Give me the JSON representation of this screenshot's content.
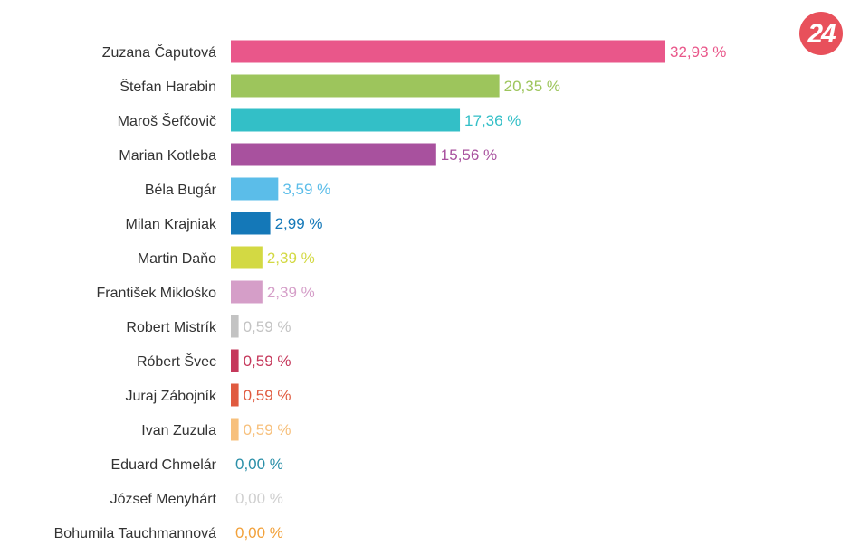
{
  "logo": {
    "text": "24",
    "color": "#e8505b"
  },
  "chart_data": {
    "type": "bar",
    "orientation": "horizontal",
    "categories": [
      "Zuzana Čaputová",
      "Štefan Harabin",
      "Maroš Šefčovič",
      "Marian Kotleba",
      "Béla Bugár",
      "Milan Krajniak",
      "Martin Daňo",
      "František Miklośko",
      "Robert Mistrík",
      "Róbert Švec",
      "Juraj Zábojník",
      "Ivan Zuzula",
      "Eduard Chmelár",
      "József Menyhárt",
      "Bohumila Tauchmannová"
    ],
    "values": [
      32.93,
      20.35,
      17.36,
      15.56,
      3.59,
      2.99,
      2.39,
      2.39,
      0.59,
      0.59,
      0.59,
      0.59,
      0.0,
      0.0,
      0.0
    ],
    "value_labels": [
      "32,93 %",
      "20,35 %",
      "17,36 %",
      "15,56 %",
      "3,59 %",
      "2,99 %",
      "2,39 %",
      "2,39 %",
      "0,59 %",
      "0,59 %",
      "0,59 %",
      "0,59 %",
      "0,00 %",
      "0,00 %",
      "0,00 %"
    ],
    "colors": [
      "#e9578a",
      "#9dc55c",
      "#33bfc7",
      "#a8519e",
      "#5bbde9",
      "#1478b8",
      "#d3d943",
      "#d59ec8",
      "#c3c3c3",
      "#c5385b",
      "#e05a3f",
      "#f7c07c",
      "#2a8fa8",
      "#cfcfcf",
      "#f2a13a"
    ],
    "xlim": [
      0,
      32.93
    ],
    "grid": false,
    "legend": "none"
  }
}
